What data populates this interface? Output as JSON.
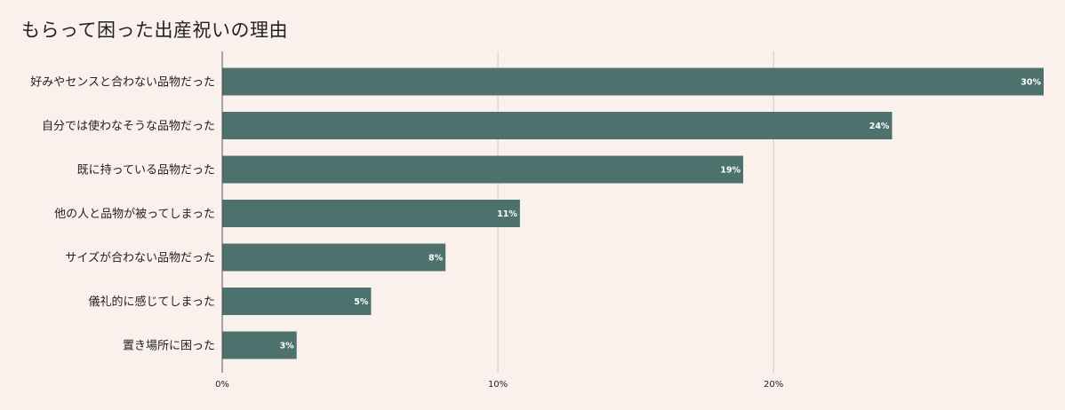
{
  "chart_data": {
    "type": "bar",
    "orientation": "horizontal",
    "title": "もらって困った出産祝いの理由",
    "categories": [
      "好みやセンスと合わない品物だった",
      "自分では使わなそうな品物だった",
      "既に持っている品物だった",
      "他の人と品物が被ってしまった",
      "サイズが合わない品物だった",
      "儀礼的に感じてしまった",
      "置き場所に困った"
    ],
    "values": [
      29.8,
      24.3,
      18.9,
      10.8,
      8.1,
      5.4,
      2.7
    ],
    "value_labels": [
      "30%",
      "24%",
      "19%",
      "11%",
      "8%",
      "5%",
      "3%"
    ],
    "xlim": [
      0,
      29.8
    ],
    "xticks": [
      0,
      10,
      20
    ],
    "xtick_labels": [
      "0%",
      "10%",
      "20%"
    ],
    "grid": true,
    "xlabel": "",
    "ylabel": "",
    "colors": {
      "bar": "#4d716c",
      "background": "#fbf1ec",
      "grid": "#cfc8c4",
      "axis": "#555555"
    }
  }
}
